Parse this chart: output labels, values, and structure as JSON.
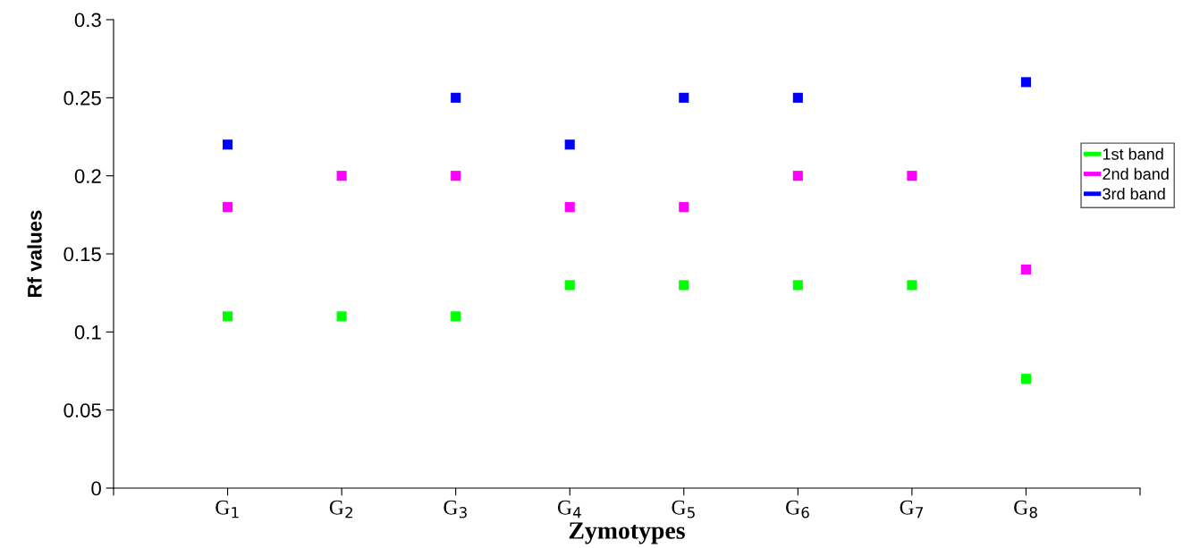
{
  "chart_data": {
    "type": "scatter",
    "xlabel": "Zymotypes",
    "ylabel": "Rf values",
    "x": [
      1,
      2,
      3,
      4,
      5,
      6,
      7,
      8
    ],
    "xlim": [
      0,
      9
    ],
    "xticks": [
      {
        "value": 0,
        "label": null
      },
      {
        "value": 1,
        "label": "G$_{1}$"
      },
      {
        "value": 2,
        "label": "G$_{2}$"
      },
      {
        "value": 3,
        "label": "G$_{3}$"
      },
      {
        "value": 4,
        "label": "G$_{4}$"
      },
      {
        "value": 5,
        "label": "G$_{5}$"
      },
      {
        "value": 6,
        "label": "G$_{6}$"
      },
      {
        "value": 7,
        "label": "G$_{7}$"
      },
      {
        "value": 8,
        "label": "G$_{8}$"
      },
      {
        "value": 9,
        "label": null
      }
    ],
    "ylim": [
      0,
      0.3
    ],
    "yticks": [
      0,
      0.05,
      0.1,
      0.15,
      0.2,
      0.25,
      0.3
    ],
    "marker": "square",
    "grid": false,
    "legend": "right",
    "series": [
      {
        "name": "1st band",
        "color": "#00ff00",
        "values": [
          0.11,
          0.11,
          0.11,
          0.13,
          0.13,
          0.13,
          0.13,
          0.07
        ]
      },
      {
        "name": "2nd band",
        "color": "#ff00ff",
        "values": [
          0.18,
          0.2,
          0.2,
          0.18,
          0.18,
          0.2,
          0.2,
          0.14
        ]
      },
      {
        "name": "3rd band",
        "color": "#0000ff",
        "values": [
          0.22,
          null,
          0.25,
          0.22,
          0.25,
          0.25,
          null,
          0.26
        ]
      }
    ]
  }
}
